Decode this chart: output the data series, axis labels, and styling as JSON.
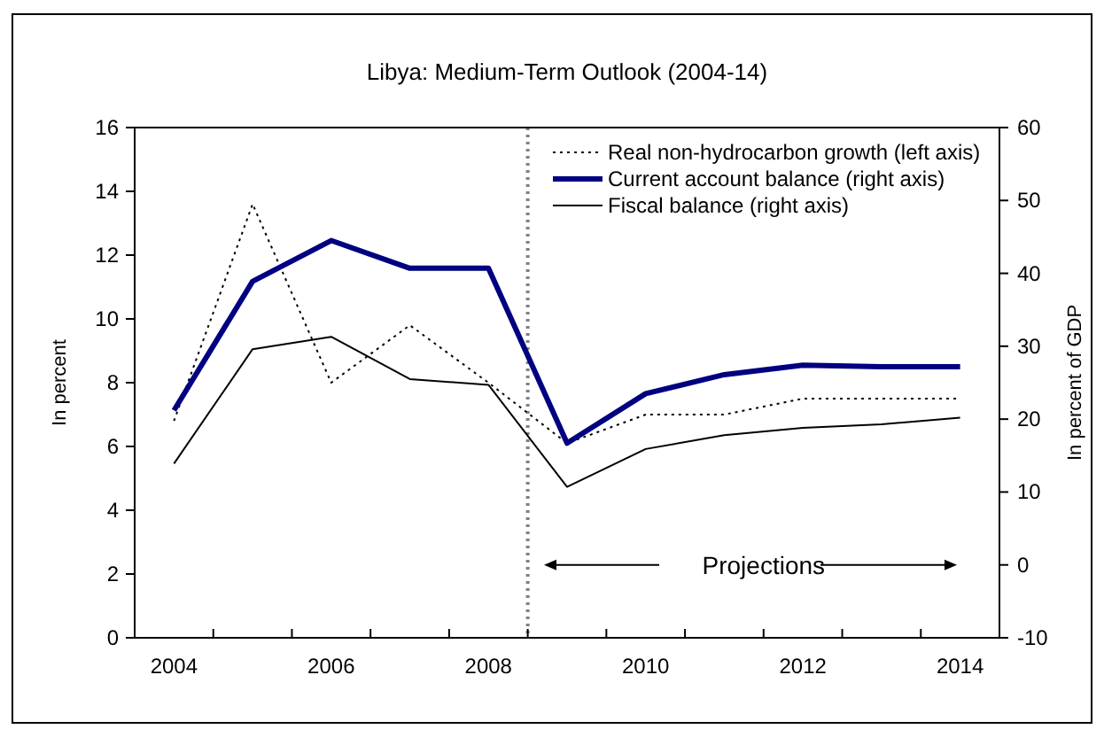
{
  "chart_data": {
    "type": "line",
    "title": "Libya: Medium-Term Outlook (2004-14)",
    "ylabel": "In percent",
    "y2label": "In percent of GDP",
    "x": [
      2004,
      2005,
      2006,
      2007,
      2008,
      2009,
      2010,
      2011,
      2012,
      2013,
      2014
    ],
    "xlim": [
      2003.5,
      2014.5
    ],
    "xticks": [
      2004,
      {
        "value": 2004.5,
        "label": null
      },
      2006,
      {
        "value": 2005.5,
        "label": null
      },
      {
        "value": 2006.5,
        "label": null
      },
      2008,
      {
        "value": 2007.5,
        "label": null
      },
      {
        "value": 2008.5,
        "label": null
      },
      2010,
      {
        "value": 2009.5,
        "label": null
      },
      {
        "value": 2010.5,
        "label": null
      },
      2012,
      {
        "value": 2011.5,
        "label": null
      },
      {
        "value": 2012.5,
        "label": null
      },
      2014,
      {
        "value": 2013.5,
        "label": null
      }
    ],
    "ylim": [
      0,
      16
    ],
    "yticks": [
      0,
      2,
      4,
      6,
      8,
      10,
      12,
      14,
      16
    ],
    "y2lim": [
      -10,
      60
    ],
    "y2ticks": [
      -10,
      0,
      10,
      20,
      30,
      40,
      50,
      60
    ],
    "series": [
      {
        "name": "Real non-hydrocarbon growth (left axis)",
        "color": "#000000",
        "line_style": "dotted",
        "values": [
          6.8,
          13.6,
          8.0,
          9.8,
          8.0,
          6.1,
          7.0,
          7.0,
          7.5,
          7.5,
          7.5
        ]
      },
      {
        "name": "Current account balance (right axis)",
        "color": "#000080",
        "axis": "y2",
        "line_style": "solid",
        "values": [
          21.2,
          38.9,
          44.5,
          40.7,
          40.7,
          16.7,
          23.5,
          26.1,
          27.4,
          27.2,
          27.2
        ]
      },
      {
        "name": "Fiscal balance (right axis)",
        "color": "#000000",
        "axis": "y2",
        "line_style": "solid",
        "values": [
          13.9,
          29.6,
          31.3,
          25.5,
          24.7,
          10.7,
          15.9,
          17.8,
          18.8,
          19.3,
          20.2
        ]
      }
    ],
    "ref_lines": [
      {
        "axis": "x",
        "value": 2008.5,
        "color": "#808080",
        "line_style": "dotted"
      }
    ],
    "annotations": [
      "Projections"
    ],
    "grid": false,
    "legend": "top right",
    "marker": "none"
  }
}
